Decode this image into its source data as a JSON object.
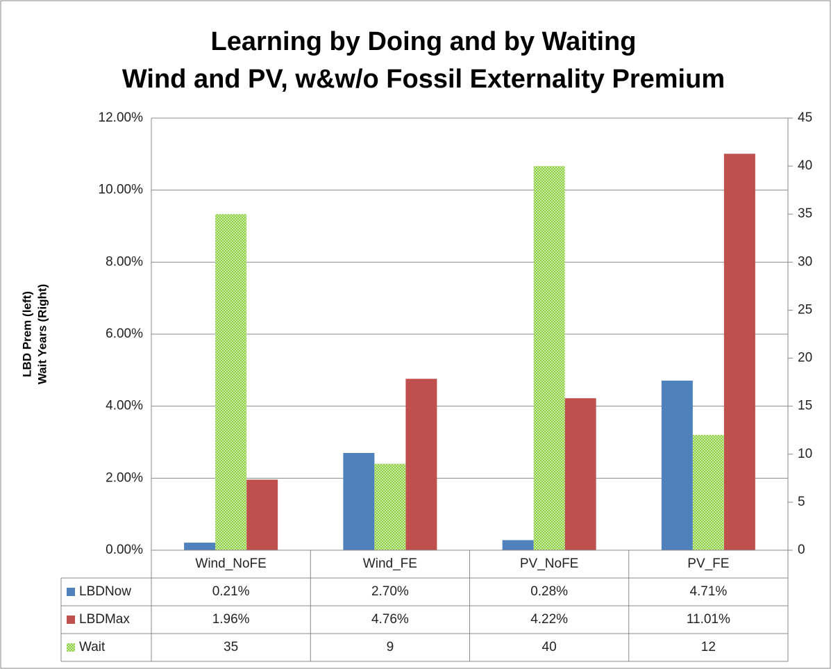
{
  "chart_data": {
    "type": "bar",
    "title": [
      "Learning by Doing and by Waiting",
      "Wind and PV, w&w/o Fossil Externality Premium"
    ],
    "ylabel": [
      "LBD Prem (left)",
      "Wait Years (Right)"
    ],
    "categories": [
      "Wind_NoFE",
      "Wind_FE",
      "PV_NoFE",
      "PV_FE"
    ],
    "series": [
      {
        "name": "LBDNow",
        "color": "#4f81bd",
        "values": [
          0.21,
          2.7,
          0.28,
          4.71
        ],
        "value_labels": [
          "0.21%",
          "2.70%",
          "0.28%",
          "4.71%"
        ]
      },
      {
        "name": "LBDMax",
        "color": "#c0504d",
        "values": [
          1.96,
          4.76,
          4.22,
          11.01
        ],
        "value_labels": [
          "1.96%",
          "4.76%",
          "4.22%",
          "11.01%"
        ]
      },
      {
        "name": "Wait",
        "color": "#9bbb59",
        "axis": "y2",
        "values": [
          35,
          9,
          40,
          12
        ]
      }
    ],
    "ylim": [
      0,
      12
    ],
    "yticks": [
      {
        "value": 0,
        "label": "0.00%"
      },
      {
        "value": 2,
        "label": "2.00%"
      },
      {
        "value": 4,
        "label": "4.00%"
      },
      {
        "value": 6,
        "label": "6.00%"
      },
      {
        "value": 8,
        "label": "8.00%"
      },
      {
        "value": 10,
        "label": "10.00%"
      },
      {
        "value": 12,
        "label": "12.00%"
      }
    ],
    "y2lim": [
      0,
      45
    ],
    "y2ticks": [
      0,
      5,
      10,
      15,
      20,
      25,
      30,
      35,
      40,
      45
    ],
    "grid": true
  }
}
